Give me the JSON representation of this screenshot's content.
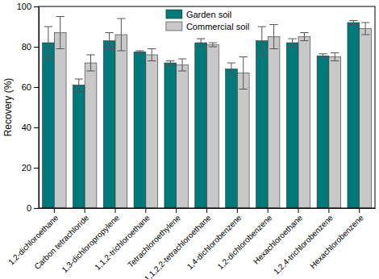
{
  "chart_data": {
    "type": "bar",
    "y_label": "Recovery (%)",
    "categories": [
      "1,2-dichloroethane",
      "Carbon tetrachloride",
      "1,3-dichloropropylene",
      "1,1,2-trichloroethane",
      "Tetrachloroethylene",
      "1,1,2,2-tetrachloroethane",
      "1,4-dichlorobenzene",
      "1,2-dichlorobenzene",
      "Hexachloroethane",
      "1,2,4-trichlorobenzene",
      "Hexachlorobenzene"
    ],
    "series": [
      {
        "name": "Garden soil",
        "color": "#00797a",
        "values": [
          82,
          61,
          83,
          77.5,
          72,
          82,
          69,
          83,
          82,
          75.5,
          92
        ],
        "errors": [
          8,
          3,
          4,
          0.5,
          1,
          2,
          3,
          7,
          2,
          1,
          1
        ]
      },
      {
        "name": "Commercial soil",
        "color": "#c8c8c8",
        "values": [
          87,
          72,
          86,
          76,
          71,
          81,
          67,
          85,
          85,
          75,
          89
        ],
        "errors": [
          8,
          4,
          8,
          3,
          3,
          1,
          8,
          6,
          2,
          2,
          3
        ]
      }
    ],
    "ylim": [
      0,
      100
    ],
    "yticks": [
      0,
      20,
      40,
      60,
      80,
      100
    ],
    "legend": "top"
  }
}
